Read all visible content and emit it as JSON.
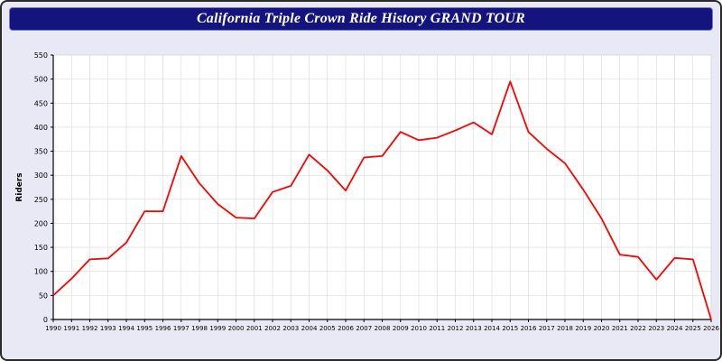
{
  "title_bar": {
    "title": "California Triple Crown Ride History GRAND TOUR"
  },
  "chart_data": {
    "type": "line",
    "title": "California Triple Crown Ride History GRAND TOUR",
    "xlabel": "",
    "ylabel": "Riders",
    "ylim": [
      0,
      550
    ],
    "ytick_step": 50,
    "grid": true,
    "legend_position": "none",
    "line_color": "#ff0000",
    "x": [
      1990,
      1991,
      1992,
      1993,
      1994,
      1995,
      1996,
      1997,
      1998,
      1999,
      2000,
      2001,
      2002,
      2003,
      2004,
      2005,
      2006,
      2007,
      2008,
      2009,
      2010,
      2011,
      2012,
      2013,
      2014,
      2015,
      2016,
      2017,
      2018,
      2019,
      2020,
      2021,
      2022,
      2023,
      2024,
      2025,
      2026
    ],
    "series": [
      {
        "name": "Riders",
        "values": [
          50,
          85,
          125,
          127,
          160,
          225,
          225,
          340,
          283,
          240,
          212,
          210,
          265,
          278,
          343,
          310,
          268,
          337,
          340,
          390,
          373,
          378,
          393,
          410,
          385,
          495,
          390,
          355,
          325,
          270,
          210,
          135,
          130,
          83,
          128,
          125,
          0
        ]
      }
    ]
  },
  "colors": {
    "page_background": "#e9e9f6",
    "title_bar_background": "#14147e",
    "title_text": "#ffffff",
    "plot_background": "#ffffff",
    "grid_line": "#d9d9d9",
    "axis_line": "#000000",
    "data_line": "#ff0000"
  }
}
